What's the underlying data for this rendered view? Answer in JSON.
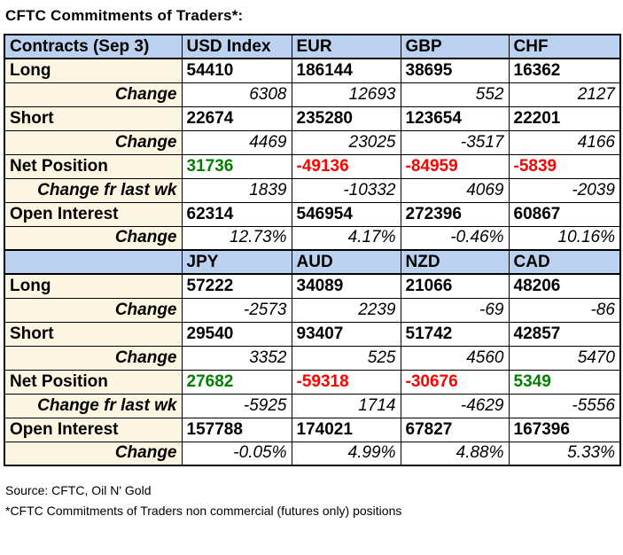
{
  "title": "CFTC Commitments of Traders*:",
  "colors": {
    "header_bg": "#bad2f0",
    "label_bg": "#fcf5e2",
    "positive": "#008000",
    "negative": "#ff0000",
    "border": "#000000"
  },
  "table": {
    "sections": [
      {
        "header": [
          "Contracts (Sep 3)",
          "USD Index",
          "EUR",
          "GBP",
          "CHF"
        ],
        "rows": [
          {
            "label": "Long",
            "type": "main",
            "values": [
              "54410",
              "186144",
              "38695",
              "16362"
            ]
          },
          {
            "label": "Change",
            "type": "change",
            "values": [
              "6308",
              "12693",
              "552",
              "2127"
            ]
          },
          {
            "label": "Short",
            "type": "main",
            "values": [
              "22674",
              "235280",
              "123654",
              "22201"
            ]
          },
          {
            "label": "Change",
            "type": "change",
            "values": [
              "4469",
              "23025",
              "-3517",
              "4166"
            ]
          },
          {
            "label": "Net Position",
            "type": "net",
            "values": [
              "31736",
              "-49136",
              "-84959",
              "-5839"
            ]
          },
          {
            "label": "Change fr last wk",
            "type": "change",
            "values": [
              "1839",
              "-10332",
              "4069",
              "-2039"
            ]
          },
          {
            "label": "Open Interest",
            "type": "main",
            "values": [
              "62314",
              "546954",
              "272396",
              "60867"
            ]
          },
          {
            "label": "Change",
            "type": "change",
            "values": [
              "12.73%",
              "4.17%",
              "-0.46%",
              "10.16%"
            ]
          }
        ]
      },
      {
        "header": [
          "",
          "JPY",
          "AUD",
          "NZD",
          "CAD"
        ],
        "rows": [
          {
            "label": "Long",
            "type": "main",
            "values": [
              "57222",
              "34089",
              "21066",
              "48206"
            ]
          },
          {
            "label": "Change",
            "type": "change",
            "values": [
              "-2573",
              "2239",
              "-69",
              "-86"
            ]
          },
          {
            "label": "Short",
            "type": "main",
            "values": [
              "29540",
              "93407",
              "51742",
              "42857"
            ]
          },
          {
            "label": "Change",
            "type": "change",
            "values": [
              "3352",
              "525",
              "4560",
              "5470"
            ]
          },
          {
            "label": "Net Position",
            "type": "net",
            "values": [
              "27682",
              "-59318",
              "-30676",
              "5349"
            ]
          },
          {
            "label": "Change fr last wk",
            "type": "change",
            "values": [
              "-5925",
              "1714",
              "-4629",
              "-5556"
            ]
          },
          {
            "label": "Open Interest",
            "type": "main",
            "values": [
              "157788",
              "174021",
              "67827",
              "167396"
            ]
          },
          {
            "label": "Change",
            "type": "change",
            "values": [
              "-0.05%",
              "4.99%",
              "4.88%",
              "5.33%"
            ]
          }
        ]
      }
    ]
  },
  "footer": {
    "source": "Source: CFTC, Oil N' Gold",
    "note": "*CFTC Commitments of Traders non commercial (futures only) positions"
  }
}
